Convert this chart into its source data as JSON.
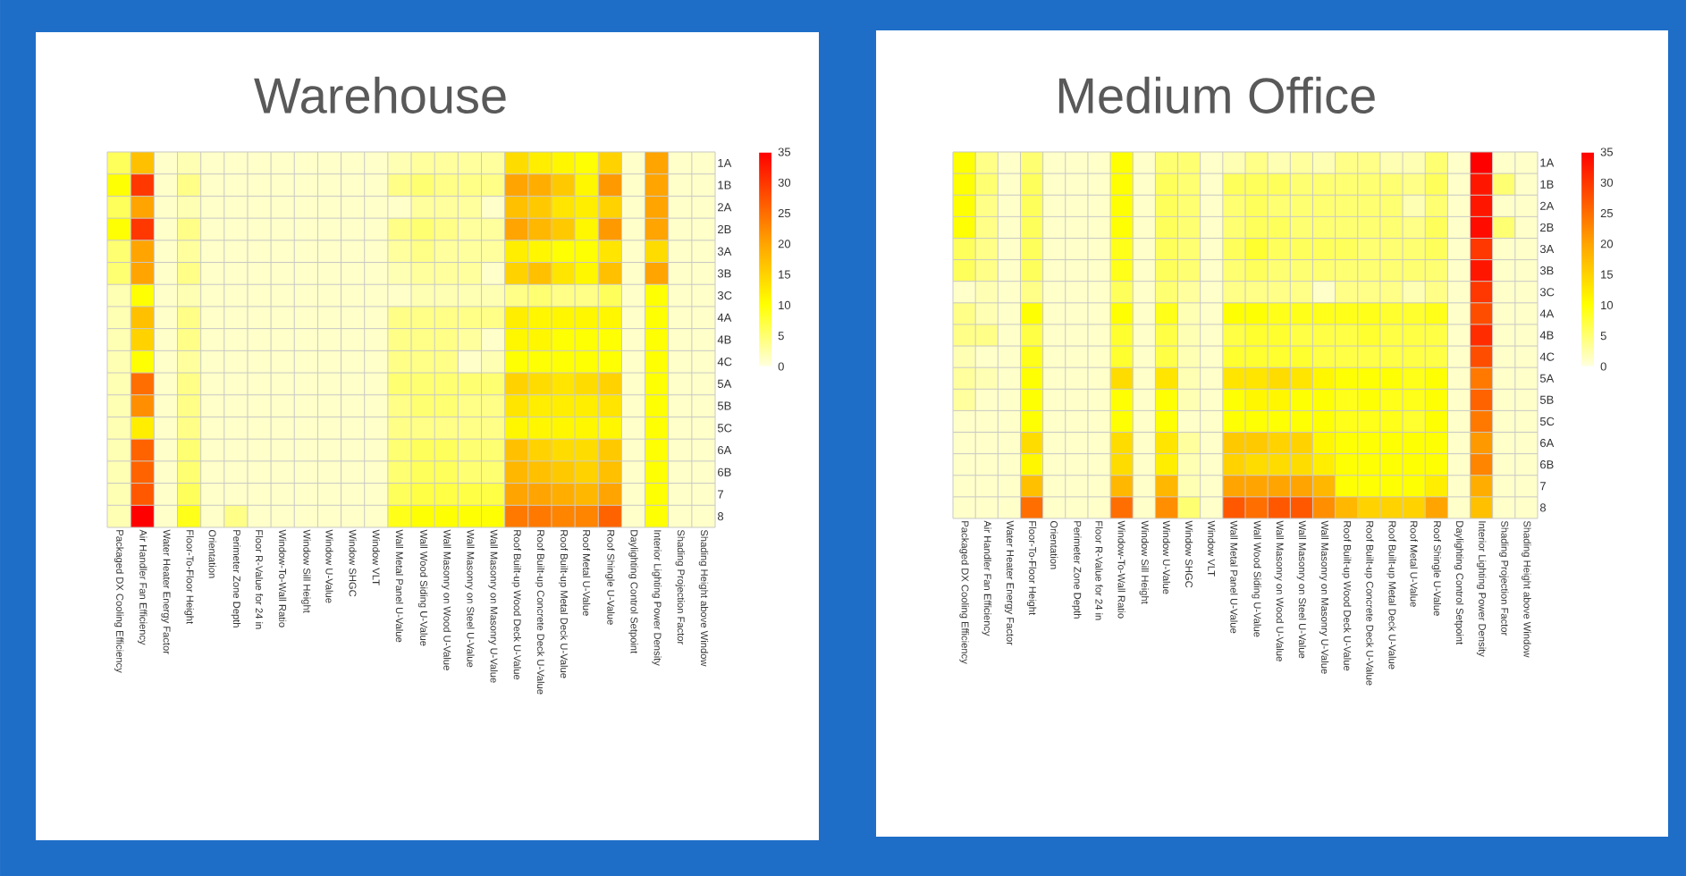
{
  "chart_data": [
    {
      "type": "heatmap",
      "title": "Warehouse",
      "categories": [
        "Packaged DX Cooling Efficiency",
        "Air Handler Fan Efficiency",
        "Water Heater Energy Factor",
        "Floor-To-Floor Height",
        "Orientation",
        "Perimeter Zone Depth",
        "Floor R-Value for 24 in",
        "Window-To-Wall Ratio",
        "Window Sill Height",
        "Window U-Value",
        "Window SHGC",
        "Window VLT",
        "Wall Metal Panel U-Value",
        "Wall Wood Siding U-Value",
        "Wall Masonry on Wood U-Value",
        "Wall Masonry on Steel U-Value",
        "Wall Masonry on Masonry U-Value",
        "Roof Built-up Wood Deck U-Value",
        "Roof Built-up Concrete Deck U-Value",
        "Roof Built-up Metal Deck U-Value",
        "Roof Metal U-Value",
        "Roof Shingle U-Value",
        "Daylighting Control Setpoint",
        "Interior Lighting Power Density",
        "Shading Projection Factor",
        "Shading Height above Window"
      ],
      "y_categories": [
        "1A",
        "1B",
        "2A",
        "2B",
        "3A",
        "3B",
        "3C",
        "4A",
        "4B",
        "4C",
        "5A",
        "5B",
        "5C",
        "6A",
        "6B",
        "7",
        "8"
      ],
      "cells": [
        [
          6,
          17,
          1,
          2,
          1,
          1,
          1,
          1,
          1,
          1,
          1,
          1,
          2,
          3,
          3,
          3,
          3,
          14,
          12,
          11,
          10,
          15,
          1,
          20,
          1,
          1
        ],
        [
          10,
          30,
          1,
          4,
          1,
          1,
          1,
          1,
          1,
          1,
          1,
          1,
          4,
          5,
          4,
          4,
          4,
          20,
          19,
          16,
          11,
          21,
          1,
          20,
          1,
          1
        ],
        [
          6,
          20,
          1,
          2,
          1,
          1,
          1,
          1,
          1,
          1,
          1,
          1,
          1,
          3,
          3,
          3,
          1,
          17,
          16,
          13,
          12,
          15,
          1,
          20,
          1,
          1
        ],
        [
          10,
          30,
          1,
          4,
          1,
          1,
          1,
          1,
          1,
          1,
          1,
          1,
          4,
          5,
          4,
          3,
          3,
          20,
          18,
          16,
          11,
          21,
          1,
          20,
          1,
          1
        ],
        [
          5,
          20,
          1,
          3,
          1,
          1,
          1,
          1,
          1,
          1,
          1,
          1,
          3,
          4,
          3,
          3,
          3,
          12,
          11,
          10,
          10,
          13,
          1,
          14,
          1,
          1
        ],
        [
          5,
          20,
          1,
          4,
          1,
          1,
          1,
          1,
          1,
          1,
          1,
          1,
          2,
          3,
          3,
          3,
          1,
          15,
          17,
          13,
          11,
          17,
          1,
          20,
          1,
          1
        ],
        [
          2,
          10,
          1,
          2,
          1,
          1,
          1,
          1,
          1,
          1,
          1,
          1,
          1,
          2,
          2,
          2,
          2,
          4,
          5,
          4,
          4,
          6,
          1,
          10,
          1,
          1
        ],
        [
          2,
          17,
          1,
          4,
          1,
          1,
          1,
          1,
          1,
          1,
          1,
          1,
          4,
          4,
          4,
          4,
          4,
          12,
          11,
          11,
          11,
          11,
          1,
          10,
          1,
          1
        ],
        [
          2,
          15,
          1,
          4,
          1,
          1,
          1,
          1,
          1,
          1,
          1,
          1,
          4,
          4,
          4,
          3,
          1,
          11,
          11,
          10,
          10,
          10,
          1,
          10,
          1,
          1
        ],
        [
          2,
          10,
          1,
          3,
          1,
          1,
          1,
          1,
          1,
          1,
          1,
          1,
          4,
          4,
          4,
          1,
          2,
          10,
          10,
          10,
          10,
          10,
          1,
          10,
          1,
          1
        ],
        [
          2,
          25,
          1,
          4,
          1,
          1,
          1,
          1,
          1,
          1,
          1,
          1,
          5,
          5,
          5,
          5,
          5,
          15,
          14,
          13,
          14,
          15,
          1,
          10,
          1,
          1
        ],
        [
          2,
          22,
          1,
          4,
          1,
          1,
          1,
          1,
          1,
          1,
          1,
          1,
          4,
          5,
          5,
          4,
          4,
          13,
          12,
          12,
          12,
          13,
          1,
          10,
          1,
          1
        ],
        [
          2,
          12,
          1,
          4,
          1,
          1,
          1,
          1,
          1,
          1,
          1,
          1,
          4,
          4,
          4,
          4,
          4,
          11,
          11,
          11,
          11,
          11,
          1,
          10,
          1,
          1
        ],
        [
          2,
          26,
          1,
          5,
          1,
          1,
          1,
          1,
          1,
          1,
          1,
          1,
          5,
          6,
          6,
          5,
          5,
          17,
          15,
          14,
          14,
          16,
          1,
          10,
          1,
          1
        ],
        [
          2,
          26,
          1,
          5,
          1,
          1,
          1,
          1,
          1,
          1,
          1,
          1,
          5,
          6,
          6,
          5,
          5,
          18,
          17,
          16,
          15,
          17,
          1,
          10,
          1,
          1
        ],
        [
          2,
          27,
          1,
          6,
          1,
          1,
          1,
          1,
          1,
          1,
          1,
          1,
          6,
          7,
          7,
          7,
          7,
          20,
          20,
          19,
          18,
          20,
          1,
          10,
          1,
          1
        ],
        [
          2,
          35,
          1,
          9,
          1,
          4,
          1,
          1,
          1,
          1,
          1,
          1,
          9,
          10,
          10,
          10,
          10,
          24,
          24,
          23,
          23,
          26,
          1,
          10,
          1,
          1
        ]
      ],
      "clim": [
        0,
        35
      ],
      "cticks": [
        0,
        5,
        10,
        15,
        20,
        25,
        30,
        35
      ]
    },
    {
      "type": "heatmap",
      "title": "Medium Office",
      "categories": [
        "Packaged DX Cooling Efficiency",
        "Air Handler Fan Efficiency",
        "Water Heater Energy Factor",
        "Floor-To-Floor Height",
        "Orientation",
        "Perimeter Zone Depth",
        "Floor R-Value for 24 in",
        "Window-To-Wall Ratio",
        "Window Sill Height",
        "Window U-Value",
        "Window SHGC",
        "Window VLT",
        "Wall Metal Panel U-Value",
        "Wall Wood Siding U-Value",
        "Wall Masonry on Wood U-Value",
        "Wall Masonry on Steel U-Value",
        "Wall Masonry on Masonry U-Value",
        "Roof Built-up Wood Deck U-Value",
        "Roof Built-up Concrete Deck U-Value",
        "Roof Built-up Metal Deck U-Value",
        "Roof Metal U-Value",
        "Roof Shingle U-Value",
        "Daylighting Control Setpoint",
        "Interior Lighting Power Density",
        "Shading Projection Factor",
        "Shading Height above Window"
      ],
      "y_categories": [
        "1A",
        "1B",
        "2A",
        "2B",
        "3A",
        "3B",
        "3C",
        "4A",
        "4B",
        "4C",
        "5A",
        "5B",
        "5C",
        "6A",
        "6B",
        "7",
        "8"
      ],
      "cells": [
        [
          10,
          4,
          1,
          5,
          1,
          1,
          1,
          10,
          1,
          5,
          5,
          1,
          2,
          4,
          2,
          3,
          2,
          4,
          4,
          2,
          2,
          5,
          1,
          35,
          1,
          1
        ],
        [
          10,
          5,
          1,
          6,
          1,
          1,
          1,
          10,
          1,
          6,
          5,
          1,
          6,
          6,
          6,
          5,
          5,
          5,
          5,
          5,
          4,
          6,
          1,
          33,
          5,
          1
        ],
        [
          10,
          4,
          1,
          6,
          1,
          1,
          1,
          10,
          1,
          6,
          5,
          1,
          5,
          6,
          5,
          5,
          5,
          5,
          5,
          5,
          2,
          5,
          1,
          33,
          1,
          1
        ],
        [
          10,
          4,
          1,
          6,
          1,
          1,
          1,
          10,
          1,
          6,
          5,
          1,
          5,
          6,
          6,
          5,
          5,
          5,
          5,
          5,
          4,
          6,
          1,
          34,
          5,
          1
        ],
        [
          6,
          4,
          1,
          6,
          1,
          1,
          1,
          9,
          1,
          6,
          5,
          1,
          6,
          8,
          6,
          6,
          6,
          6,
          5,
          5,
          5,
          6,
          1,
          30,
          1,
          1
        ],
        [
          6,
          4,
          1,
          6,
          1,
          1,
          1,
          9,
          1,
          6,
          5,
          1,
          5,
          6,
          5,
          5,
          5,
          5,
          5,
          5,
          5,
          5,
          1,
          33,
          1,
          1
        ],
        [
          1,
          2,
          1,
          4,
          1,
          1,
          1,
          6,
          1,
          5,
          3,
          1,
          4,
          4,
          4,
          4,
          1,
          4,
          4,
          4,
          2,
          4,
          1,
          30,
          1,
          1
        ],
        [
          4,
          2,
          1,
          10,
          1,
          1,
          1,
          10,
          1,
          9,
          2,
          1,
          10,
          10,
          9,
          9,
          9,
          9,
          9,
          8,
          8,
          9,
          1,
          28,
          1,
          1
        ],
        [
          4,
          4,
          1,
          7,
          1,
          1,
          1,
          8,
          1,
          7,
          2,
          1,
          7,
          8,
          8,
          7,
          7,
          7,
          8,
          7,
          7,
          7,
          1,
          31,
          1,
          1
        ],
        [
          2,
          1,
          1,
          9,
          1,
          1,
          1,
          8,
          1,
          7,
          2,
          1,
          8,
          8,
          8,
          8,
          7,
          7,
          7,
          7,
          7,
          7,
          1,
          28,
          1,
          1
        ],
        [
          3,
          2,
          1,
          10,
          1,
          1,
          1,
          14,
          1,
          13,
          2,
          1,
          13,
          13,
          14,
          13,
          11,
          10,
          10,
          10,
          9,
          10,
          1,
          24,
          1,
          1
        ],
        [
          3,
          1,
          1,
          10,
          1,
          1,
          1,
          10,
          1,
          10,
          2,
          1,
          10,
          11,
          11,
          10,
          10,
          9,
          10,
          9,
          9,
          10,
          1,
          26,
          1,
          1
        ],
        [
          1,
          1,
          1,
          10,
          1,
          1,
          1,
          10,
          1,
          10,
          1,
          1,
          10,
          10,
          10,
          10,
          10,
          9,
          9,
          9,
          8,
          10,
          1,
          24,
          1,
          1
        ],
        [
          1,
          1,
          1,
          14,
          1,
          1,
          1,
          14,
          1,
          13,
          3,
          1,
          16,
          16,
          15,
          15,
          11,
          10,
          10,
          10,
          10,
          10,
          1,
          21,
          1,
          1
        ],
        [
          1,
          1,
          1,
          11,
          1,
          1,
          1,
          14,
          1,
          12,
          2,
          1,
          15,
          14,
          14,
          14,
          12,
          10,
          10,
          10,
          10,
          10,
          1,
          23,
          1,
          1
        ],
        [
          1,
          1,
          1,
          17,
          1,
          1,
          1,
          18,
          1,
          18,
          2,
          1,
          20,
          20,
          20,
          20,
          18,
          10,
          10,
          10,
          10,
          12,
          1,
          19,
          1,
          1
        ],
        [
          1,
          1,
          1,
          25,
          1,
          1,
          1,
          25,
          1,
          22,
          5,
          1,
          27,
          25,
          27,
          27,
          22,
          18,
          15,
          15,
          15,
          20,
          1,
          17,
          1,
          1
        ]
      ],
      "clim": [
        0,
        35
      ],
      "cticks": [
        0,
        5,
        10,
        15,
        20,
        25,
        30,
        35
      ]
    }
  ]
}
